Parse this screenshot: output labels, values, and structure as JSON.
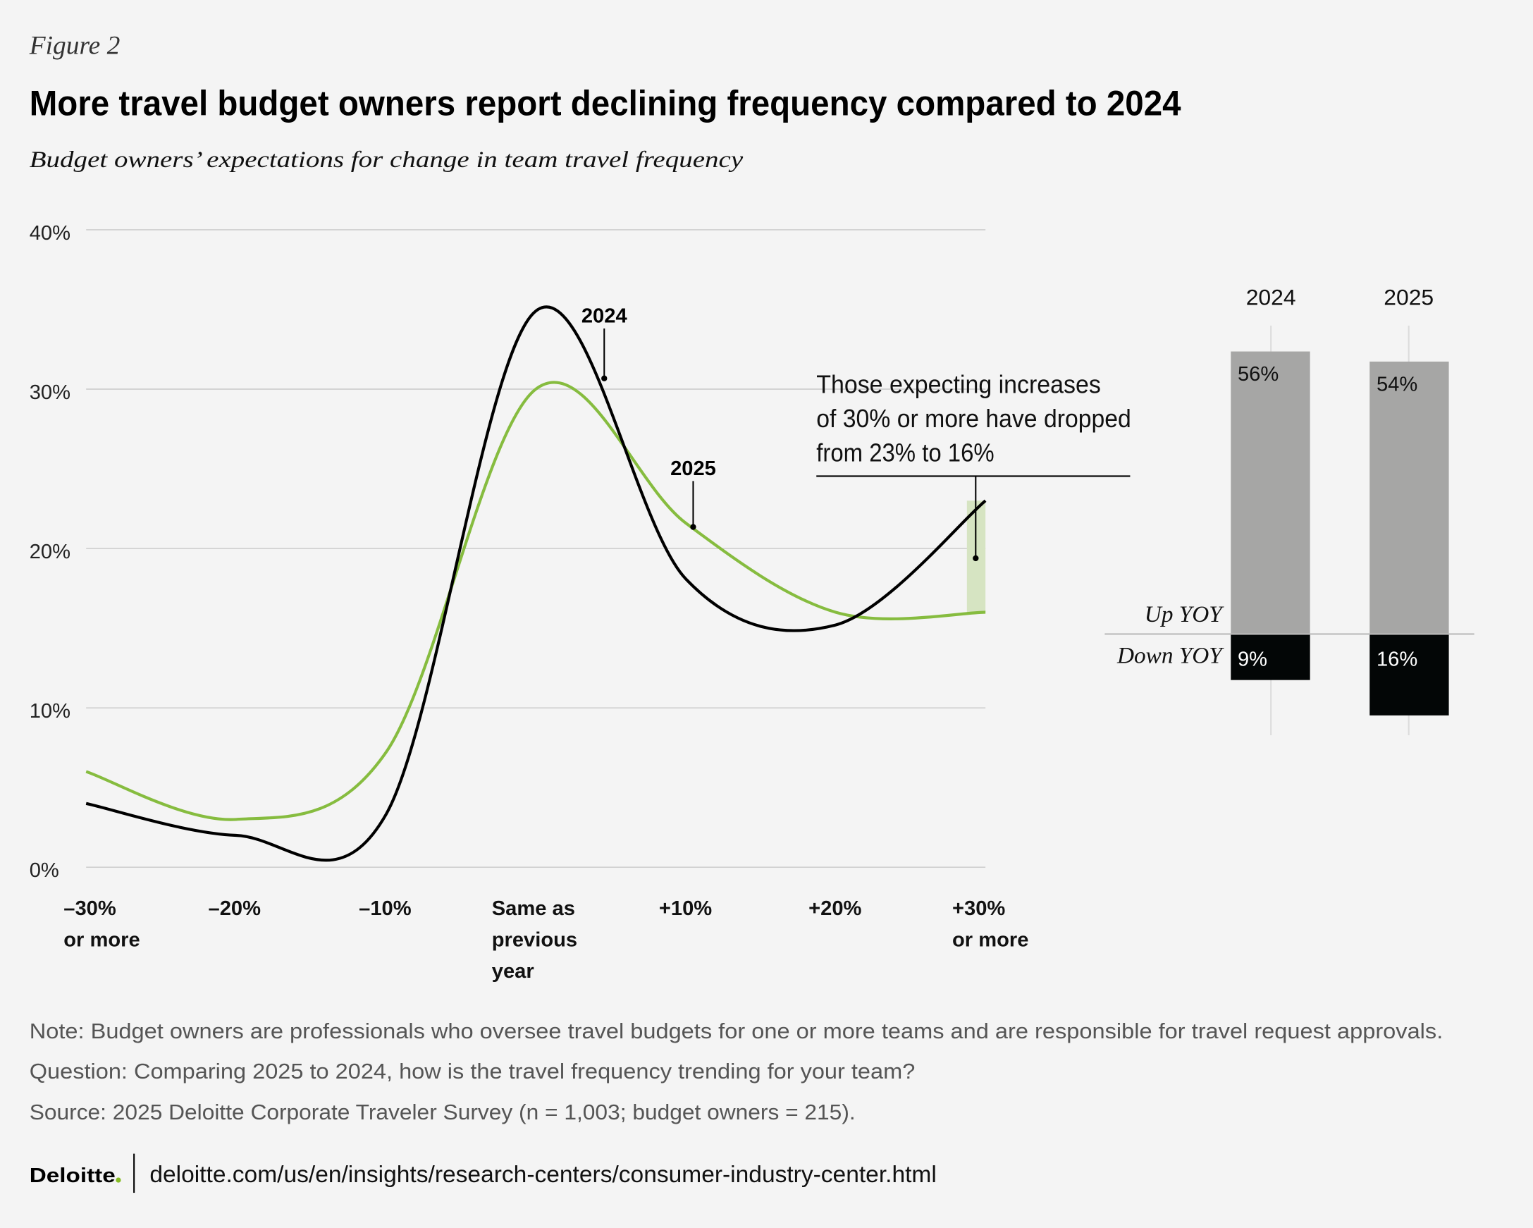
{
  "figure_label": "Figure 2",
  "title": "More travel budget owners report declining frequency compared to 2024",
  "subtitle": "Budget owners’ expectations for change in team travel frequency",
  "colors": {
    "background": "#f4f4f4",
    "series_2024": "#000000",
    "series_2025": "#86bc3f",
    "highlight": "#d6e4c2",
    "bar_up": "#a6a6a5",
    "bar_down": "#030606",
    "brand_dot": "#86bc25"
  },
  "chart_data": [
    {
      "type": "line",
      "ylim": [
        0,
        40
      ],
      "y_ticks": [
        "0%",
        "10%",
        "20%",
        "30%",
        "40%"
      ],
      "y_tick_values": [
        0,
        10,
        20,
        30,
        40
      ],
      "grid": true,
      "x_values": [
        -30,
        -20,
        -10,
        0,
        10,
        20,
        30
      ],
      "x_tick_labels": [
        {
          "lines": [
            "–30%",
            "or more"
          ]
        },
        {
          "lines": [
            "–20%"
          ]
        },
        {
          "lines": [
            "–10%"
          ]
        },
        {
          "lines": [
            "Same as",
            "previous",
            "year"
          ]
        },
        {
          "lines": [
            "+10%"
          ]
        },
        {
          "lines": [
            "+20%"
          ]
        },
        {
          "lines": [
            "+30%",
            "or more"
          ]
        }
      ],
      "series": [
        {
          "name": "2024",
          "values": [
            4,
            2,
            3.3,
            34.9,
            18.1,
            15.2,
            23
          ]
        },
        {
          "name": "2025",
          "values": [
            6,
            3,
            7.2,
            30,
            21.6,
            16,
            16
          ]
        }
      ],
      "annotation": {
        "lines": [
          "Those expecting increases",
          "of 30% or more have dropped",
          "from 23% to 16%"
        ]
      }
    },
    {
      "type": "bar",
      "categories": [
        "2024",
        "2025"
      ],
      "series": [
        {
          "name": "Up YOY",
          "values": [
            56,
            54
          ],
          "labels": [
            "56%",
            "54%"
          ]
        },
        {
          "name": "Down YOY",
          "values": [
            9,
            16
          ],
          "labels": [
            "9%",
            "16%"
          ]
        }
      ]
    }
  ],
  "notes": [
    "Note: Budget owners are professionals who oversee travel budgets for one or more teams and are responsible for travel request approvals.",
    "Question: Comparing 2025 to 2024, how is the travel frequency trending for your team?",
    "Source: 2025 Deloitte Corporate Traveler Survey (n = 1,003; budget owners = 215)."
  ],
  "footer": {
    "logo": "Deloitte",
    "url": "deloitte.com/us/en/insights/research-centers/consumer-industry-center.html"
  }
}
